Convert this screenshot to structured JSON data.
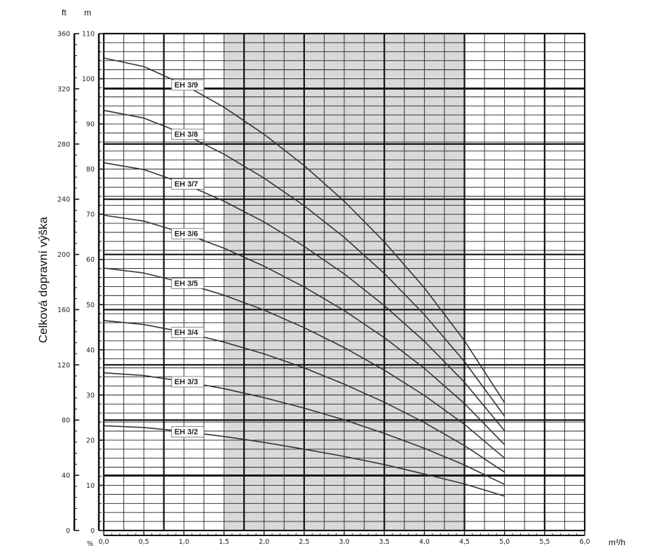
{
  "chart_data": {
    "type": "line",
    "ylabel": "Celková dopravní výška",
    "units": {
      "ft": "ft",
      "m": "m",
      "x": "m³/h",
      "percent": "%"
    },
    "xlim": [
      0,
      6
    ],
    "ylim_m": [
      0,
      110
    ],
    "ylim_ft": [
      0,
      360
    ],
    "x_ticks": [
      "0,0",
      "0,5",
      "1,0",
      "1,5",
      "2,0",
      "2,5",
      "3,0",
      "3,5",
      "4,0",
      "4,5",
      "5,0",
      "5,5",
      "6,0"
    ],
    "x_tick_values": [
      0,
      0.5,
      1,
      1.5,
      2,
      2.5,
      3,
      3.5,
      4,
      4.5,
      5,
      5.5,
      6
    ],
    "y_ticks_m": [
      0,
      10,
      20,
      30,
      40,
      50,
      60,
      70,
      80,
      90,
      100,
      110
    ],
    "y_ticks_ft": [
      0,
      40,
      80,
      120,
      160,
      200,
      240,
      280,
      320,
      360
    ],
    "shaded_range": [
      1.5,
      4.5
    ],
    "grid": true,
    "series": [
      {
        "name": "EH 3/2",
        "x": [
          0,
          0.5,
          1,
          1.5,
          2,
          2.5,
          3,
          3.5,
          4,
          4.5,
          5
        ],
        "y": [
          23.2,
          22.8,
          21.9,
          20.8,
          19.5,
          18.0,
          16.4,
          14.6,
          12.5,
          10.3,
          7.6
        ]
      },
      {
        "name": "EH 3/3",
        "x": [
          0,
          0.5,
          1,
          1.5,
          2,
          2.5,
          3,
          3.5,
          4,
          4.5,
          5
        ],
        "y": [
          34.9,
          34.3,
          33.0,
          31.4,
          29.4,
          27.1,
          24.5,
          21.5,
          18.2,
          14.5,
          10.2
        ]
      },
      {
        "name": "EH 3/4",
        "x": [
          0,
          0.5,
          1,
          1.5,
          2,
          2.5,
          3,
          3.5,
          4,
          4.5,
          5
        ],
        "y": [
          46.5,
          45.6,
          43.9,
          41.7,
          39.1,
          36.0,
          32.4,
          28.4,
          23.9,
          18.8,
          12.9
        ]
      },
      {
        "name": "EH 3/5",
        "x": [
          0,
          0.5,
          1,
          1.5,
          2,
          2.5,
          3,
          3.5,
          4,
          4.5,
          5
        ],
        "y": [
          58.1,
          57.0,
          54.8,
          52.1,
          48.8,
          44.9,
          40.5,
          35.5,
          29.9,
          23.5,
          16.0
        ]
      },
      {
        "name": "EH 3/6",
        "x": [
          0,
          0.5,
          1,
          1.5,
          2,
          2.5,
          3,
          3.5,
          4,
          4.5,
          5
        ],
        "y": [
          69.8,
          68.5,
          65.8,
          62.5,
          58.5,
          53.9,
          48.7,
          42.7,
          35.9,
          28.1,
          19.0
        ]
      },
      {
        "name": "EH 3/7",
        "x": [
          0,
          0.5,
          1,
          1.5,
          2,
          2.5,
          3,
          3.5,
          4,
          4.5,
          5
        ],
        "y": [
          81.4,
          79.9,
          76.8,
          72.9,
          68.3,
          62.9,
          56.8,
          49.8,
          41.9,
          32.8,
          22.1
        ]
      },
      {
        "name": "EH 3/8",
        "x": [
          0,
          0.5,
          1,
          1.5,
          2,
          2.5,
          3,
          3.5,
          4,
          4.5,
          5
        ],
        "y": [
          93.0,
          91.3,
          87.8,
          83.3,
          78.0,
          71.9,
          64.9,
          56.9,
          47.8,
          37.4,
          25.3
        ]
      },
      {
        "name": "EH 3/9",
        "x": [
          0,
          0.5,
          1,
          1.5,
          2,
          2.5,
          3,
          3.5,
          4,
          4.5,
          5
        ],
        "y": [
          104.6,
          102.7,
          98.7,
          93.7,
          87.7,
          80.8,
          72.9,
          63.9,
          53.7,
          42.0,
          28.3
        ]
      }
    ]
  }
}
